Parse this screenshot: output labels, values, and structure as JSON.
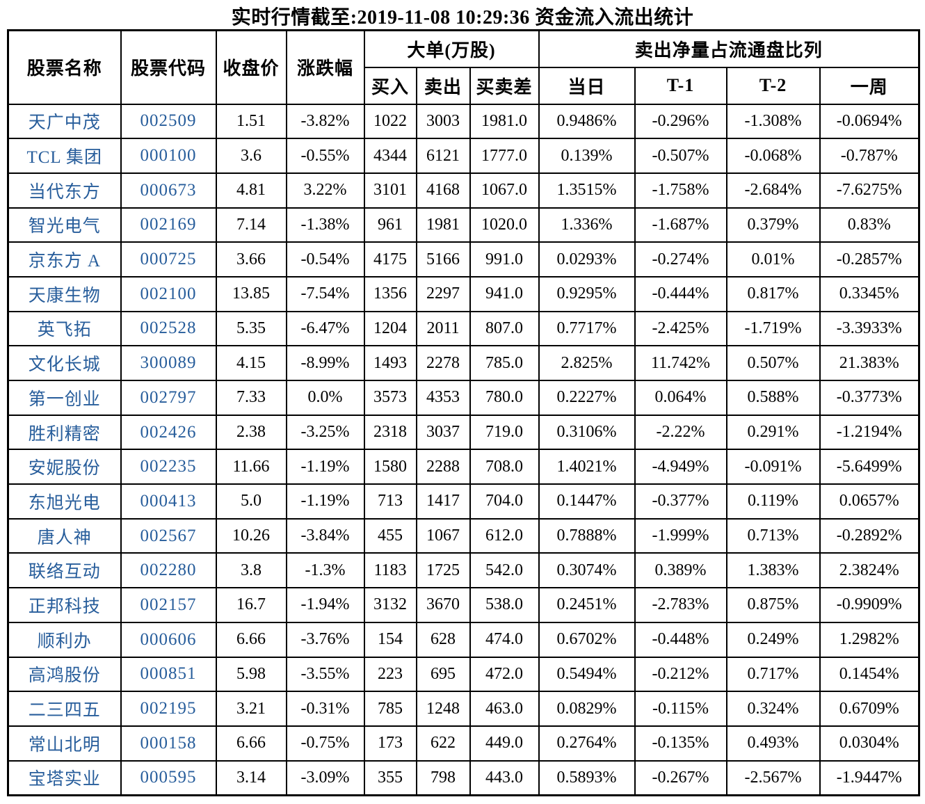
{
  "title": "实时行情截至:2019-11-08 10:29:36 资金流入流出统计",
  "chart_data": {
    "type": "table",
    "title": "实时行情截至:2019-11-08 10:29:36 资金流入流出统计",
    "column_groups": [
      {
        "label": "大单(万股)",
        "span": [
          "买入",
          "卖出",
          "买卖差"
        ]
      },
      {
        "label": "卖出净量占流通盘比列",
        "span": [
          "当日",
          "T-1",
          "T-2",
          "一周"
        ]
      }
    ],
    "columns": [
      "股票名称",
      "股票代码",
      "收盘价",
      "涨跌幅",
      "买入",
      "卖出",
      "买卖差",
      "当日",
      "T-1",
      "T-2",
      "一周"
    ],
    "rows": [
      [
        "天广中茂",
        "002509",
        "1.51",
        "-3.82%",
        "1022",
        "3003",
        "1981.0",
        "0.9486%",
        "-0.296%",
        "-1.308%",
        "-0.0694%"
      ],
      [
        "TCL 集团",
        "000100",
        "3.6",
        "-0.55%",
        "4344",
        "6121",
        "1777.0",
        "0.139%",
        "-0.507%",
        "-0.068%",
        "-0.787%"
      ],
      [
        "当代东方",
        "000673",
        "4.81",
        "3.22%",
        "3101",
        "4168",
        "1067.0",
        "1.3515%",
        "-1.758%",
        "-2.684%",
        "-7.6275%"
      ],
      [
        "智光电气",
        "002169",
        "7.14",
        "-1.38%",
        "961",
        "1981",
        "1020.0",
        "1.336%",
        "-1.687%",
        "0.379%",
        "0.83%"
      ],
      [
        "京东方 A",
        "000725",
        "3.66",
        "-0.54%",
        "4175",
        "5166",
        "991.0",
        "0.0293%",
        "-0.274%",
        "0.01%",
        "-0.2857%"
      ],
      [
        "天康生物",
        "002100",
        "13.85",
        "-7.54%",
        "1356",
        "2297",
        "941.0",
        "0.9295%",
        "-0.444%",
        "0.817%",
        "0.3345%"
      ],
      [
        "英飞拓",
        "002528",
        "5.35",
        "-6.47%",
        "1204",
        "2011",
        "807.0",
        "0.7717%",
        "-2.425%",
        "-1.719%",
        "-3.3933%"
      ],
      [
        "文化长城",
        "300089",
        "4.15",
        "-8.99%",
        "1493",
        "2278",
        "785.0",
        "2.825%",
        "11.742%",
        "0.507%",
        "21.383%"
      ],
      [
        "第一创业",
        "002797",
        "7.33",
        "0.0%",
        "3573",
        "4353",
        "780.0",
        "0.2227%",
        "0.064%",
        "0.588%",
        "-0.3773%"
      ],
      [
        "胜利精密",
        "002426",
        "2.38",
        "-3.25%",
        "2318",
        "3037",
        "719.0",
        "0.3106%",
        "-2.22%",
        "0.291%",
        "-1.2194%"
      ],
      [
        "安妮股份",
        "002235",
        "11.66",
        "-1.19%",
        "1580",
        "2288",
        "708.0",
        "1.4021%",
        "-4.949%",
        "-0.091%",
        "-5.6499%"
      ],
      [
        "东旭光电",
        "000413",
        "5.0",
        "-1.19%",
        "713",
        "1417",
        "704.0",
        "0.1447%",
        "-0.377%",
        "0.119%",
        "0.0657%"
      ],
      [
        "唐人神",
        "002567",
        "10.26",
        "-3.84%",
        "455",
        "1067",
        "612.0",
        "0.7888%",
        "-1.999%",
        "0.713%",
        "-0.2892%"
      ],
      [
        "联络互动",
        "002280",
        "3.8",
        "-1.3%",
        "1183",
        "1725",
        "542.0",
        "0.3074%",
        "0.389%",
        "1.383%",
        "2.3824%"
      ],
      [
        "正邦科技",
        "002157",
        "16.7",
        "-1.94%",
        "3132",
        "3670",
        "538.0",
        "0.2451%",
        "-2.783%",
        "0.875%",
        "-0.9909%"
      ],
      [
        "顺利办",
        "000606",
        "6.66",
        "-3.76%",
        "154",
        "628",
        "474.0",
        "0.6702%",
        "-0.448%",
        "0.249%",
        "1.2982%"
      ],
      [
        "高鸿股份",
        "000851",
        "5.98",
        "-3.55%",
        "223",
        "695",
        "472.0",
        "0.5494%",
        "-0.212%",
        "0.717%",
        "0.1454%"
      ],
      [
        "二三四五",
        "002195",
        "3.21",
        "-0.31%",
        "785",
        "1248",
        "463.0",
        "0.0829%",
        "-0.115%",
        "0.324%",
        "0.6709%"
      ],
      [
        "常山北明",
        "000158",
        "6.66",
        "-0.75%",
        "173",
        "622",
        "449.0",
        "0.2764%",
        "-0.135%",
        "0.493%",
        "0.0304%"
      ],
      [
        "宝塔实业",
        "000595",
        "3.14",
        "-3.09%",
        "355",
        "798",
        "443.0",
        "0.5893%",
        "-0.267%",
        "-2.567%",
        "-1.9447%"
      ]
    ]
  },
  "colors": {
    "name_code_blue": "#275d9b",
    "text_black": "#000000",
    "border_black": "#000000",
    "background": "#ffffff"
  }
}
